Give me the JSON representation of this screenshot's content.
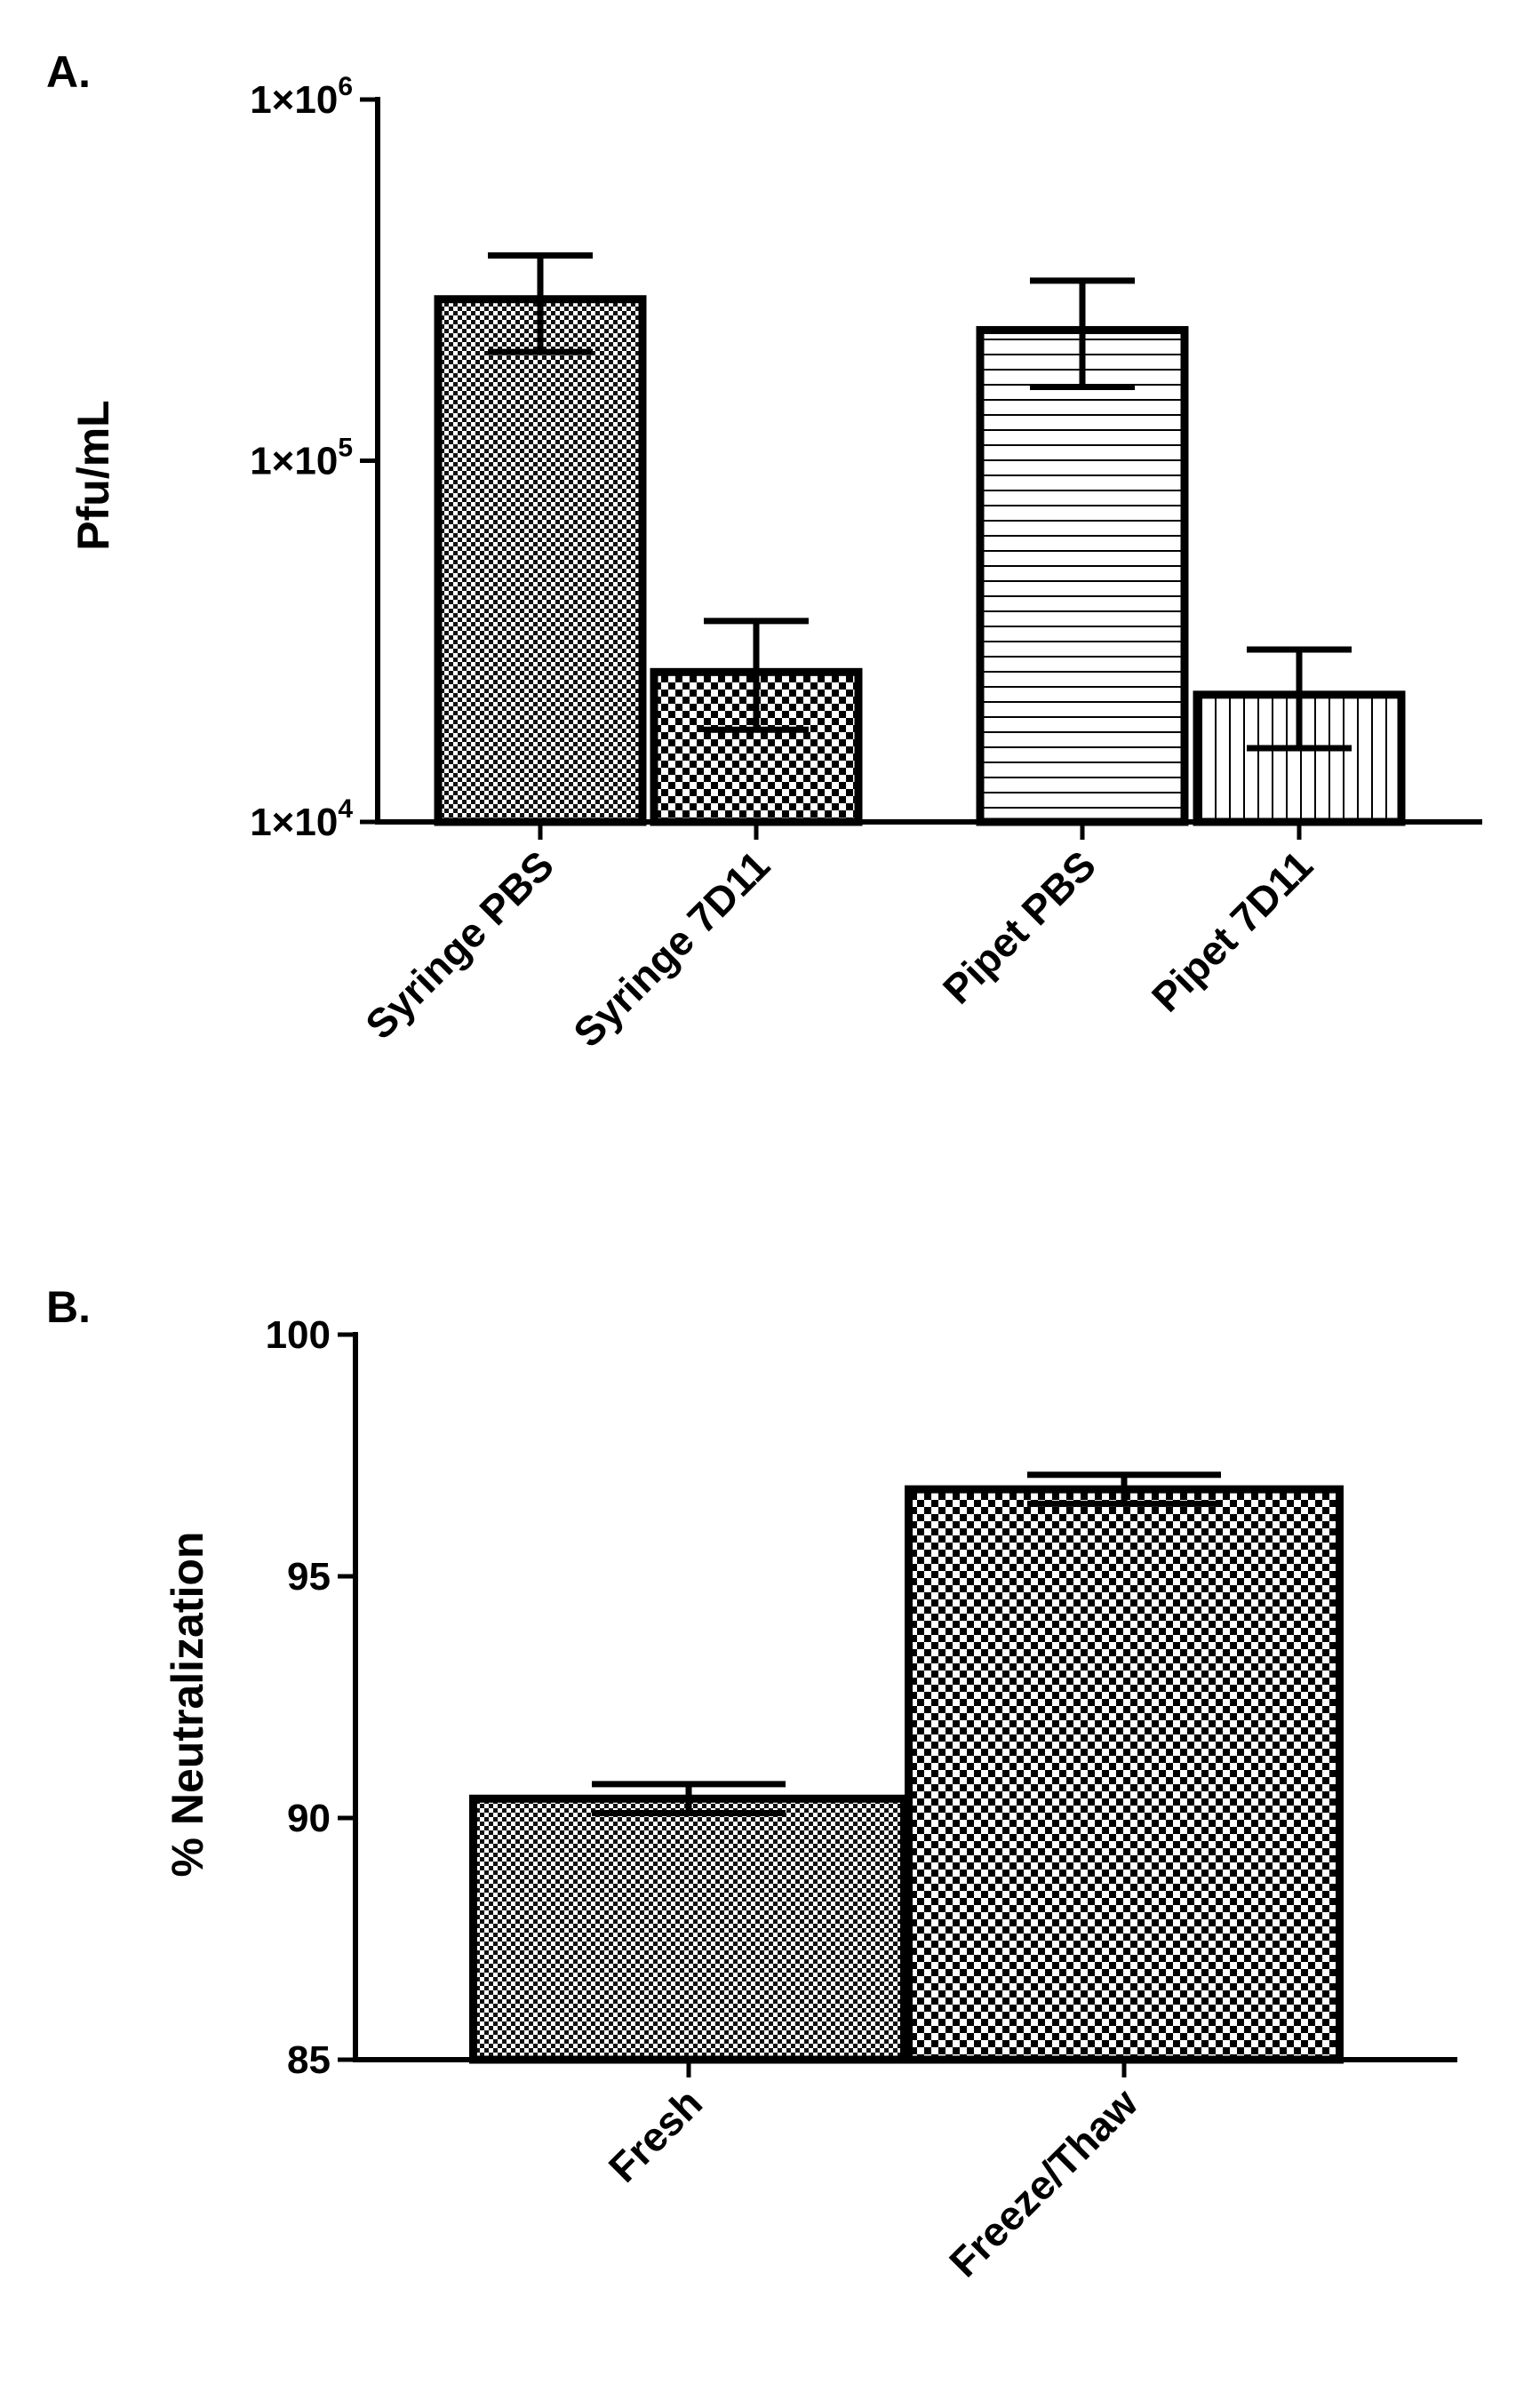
{
  "chart_data": [
    {
      "type": "bar",
      "panel": "A.",
      "ylabel": "Pfu/mL",
      "xlabel": "",
      "yscale": "log",
      "ylim": [
        10000,
        1000000
      ],
      "yticks": [
        10000,
        100000,
        1000000
      ],
      "ytick_labels": [
        {
          "base": "1×10",
          "exp": "4"
        },
        {
          "base": "1×10",
          "exp": "5"
        },
        {
          "base": "1×10",
          "exp": "6"
        }
      ],
      "categories": [
        "Syringe PBS",
        "Syringe 7D11",
        "Pipet PBS",
        "Pipet 7D11"
      ],
      "values": [
        280000,
        26000,
        230000,
        22500
      ],
      "error_low": [
        200000,
        18000,
        160000,
        16000
      ],
      "error_high": [
        370000,
        36000,
        315000,
        30000
      ],
      "patterns": [
        "fine-checker",
        "coarse-checker",
        "horizontal-lines",
        "vertical-lines"
      ],
      "grid": false
    },
    {
      "type": "bar",
      "panel": "B.",
      "ylabel": "% Neutralization",
      "xlabel": "",
      "yscale": "linear",
      "ylim": [
        85,
        100
      ],
      "yticks": [
        85,
        90,
        95,
        100
      ],
      "categories": [
        "Fresh",
        "Freeze/Thaw"
      ],
      "values": [
        90.4,
        96.8
      ],
      "error_low": [
        90.1,
        96.5
      ],
      "error_high": [
        90.7,
        97.1
      ],
      "patterns": [
        "fine-checker",
        "coarse-checker"
      ],
      "grid": false
    }
  ]
}
